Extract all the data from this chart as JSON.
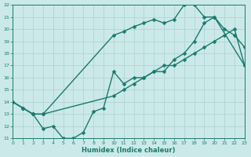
{
  "xlabel": "Humidex (Indice chaleur)",
  "xlim": [
    0,
    23
  ],
  "ylim": [
    11,
    22
  ],
  "xticks": [
    0,
    1,
    2,
    3,
    4,
    5,
    6,
    7,
    8,
    9,
    10,
    11,
    12,
    13,
    14,
    15,
    16,
    17,
    18,
    19,
    20,
    21,
    22,
    23
  ],
  "yticks": [
    11,
    12,
    13,
    14,
    15,
    16,
    17,
    18,
    19,
    20,
    21,
    22
  ],
  "bg_color": "#cce9e9",
  "grid_color": "#b0d4d4",
  "line_color": "#1a7a6e",
  "line1_x": [
    0,
    1,
    2,
    3,
    10,
    11,
    12,
    13,
    14,
    15,
    16,
    17,
    18,
    19,
    20,
    21,
    22,
    23
  ],
  "line1_y": [
    14,
    13.5,
    13,
    13,
    14.5,
    15,
    15.5,
    16,
    16.5,
    17,
    17,
    17.5,
    18,
    18.5,
    19,
    19.5,
    20,
    17
  ],
  "line2_x": [
    0,
    1,
    2,
    3,
    4,
    5,
    6,
    7,
    8,
    9,
    10,
    11,
    12,
    13,
    14,
    15,
    16,
    17,
    18,
    19,
    20,
    21,
    22,
    23
  ],
  "line2_y": [
    14,
    13.5,
    13,
    11.8,
    12,
    11,
    11,
    11.5,
    13.2,
    13.5,
    16.5,
    15.5,
    16,
    16,
    16.5,
    16.5,
    17.5,
    18,
    19,
    20.5,
    21,
    20,
    19.5,
    18.5
  ],
  "line3_x": [
    0,
    1,
    2,
    3,
    10,
    11,
    12,
    13,
    14,
    15,
    16,
    17,
    18,
    19,
    20,
    23
  ],
  "line3_y": [
    14,
    13.5,
    13,
    13,
    19.5,
    19.8,
    20.2,
    20.5,
    20.8,
    20.5,
    20.8,
    22,
    22,
    21,
    21,
    17
  ],
  "marker": "D",
  "markersize": 2.5,
  "linewidth": 1.0
}
